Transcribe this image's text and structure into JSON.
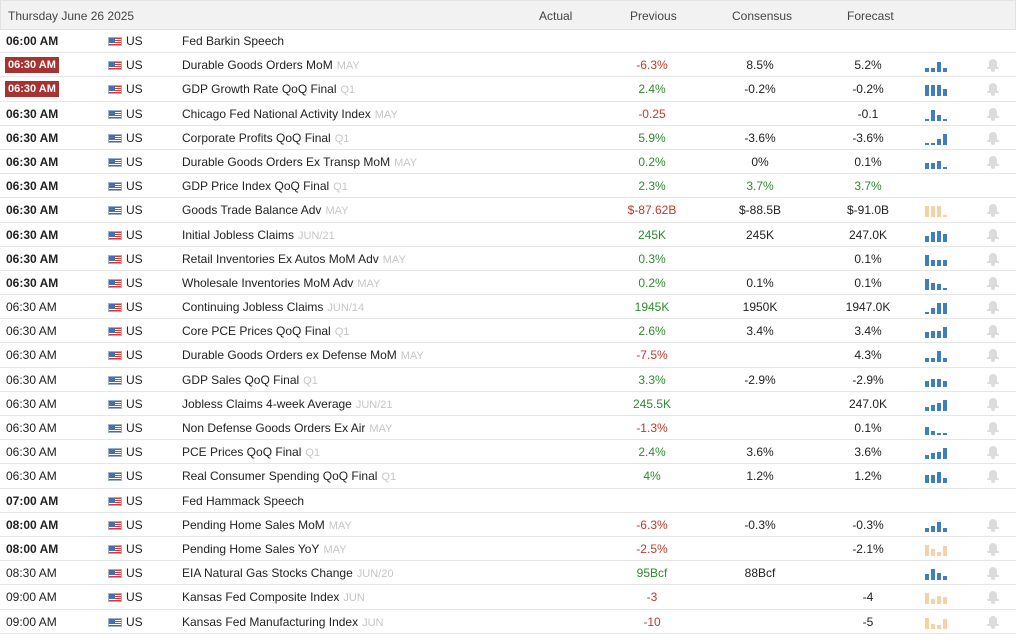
{
  "header": {
    "date": "Thursday June 26 2025",
    "actual": "Actual",
    "previous": "Previous",
    "consensus": "Consensus",
    "forecast": "Forecast"
  },
  "colors": {
    "negative": "#c0392b",
    "positive": "#2e8b2e",
    "badge": "#a63232",
    "spark_blue": "#3f7fbf",
    "spark_tan": "#f5d2a6"
  },
  "events": [
    {
      "time": "06:00 AM",
      "style": "bold",
      "country": "US",
      "event": "Fed Barkin Speech",
      "period": "",
      "actual": "",
      "previous": "",
      "previous_color": "",
      "consensus": "",
      "consensus_color": "",
      "forecast": "",
      "forecast_color": "",
      "spark": "none",
      "spark_values": [],
      "bell": false
    },
    {
      "time": "06:30 AM",
      "style": "badge",
      "country": "US",
      "event": "Durable Goods Orders MoM",
      "period": "MAY",
      "actual": "",
      "previous": "-6.3%",
      "previous_color": "neg",
      "consensus": "8.5%",
      "consensus_color": "",
      "forecast": "5.2%",
      "forecast_color": "",
      "spark": "blue",
      "spark_values": [
        0.3,
        0.3,
        0.85,
        0.3
      ],
      "bell": true
    },
    {
      "time": "06:30 AM",
      "style": "badge",
      "country": "US",
      "event": "GDP Growth Rate QoQ Final",
      "period": "Q1",
      "actual": "",
      "previous": "2.4%",
      "previous_color": "pos",
      "consensus": "-0.2%",
      "consensus_color": "",
      "forecast": "-0.2%",
      "forecast_color": "",
      "spark": "blue",
      "spark_values": [
        0.9,
        0.9,
        0.9,
        0.6
      ],
      "bell": true
    },
    {
      "time": "06:30 AM",
      "style": "bold",
      "country": "US",
      "event": "Chicago Fed National Activity Index",
      "period": "MAY",
      "actual": "",
      "previous": "-0.25",
      "previous_color": "neg",
      "consensus": "",
      "consensus_color": "",
      "forecast": "-0.1",
      "forecast_color": "",
      "spark": "blue",
      "spark_values": [
        0.2,
        0.9,
        0.5,
        0.2
      ],
      "bell": true
    },
    {
      "time": "06:30 AM",
      "style": "bold",
      "country": "US",
      "event": "Corporate Profits QoQ Final",
      "period": "Q1",
      "actual": "",
      "previous": "5.9%",
      "previous_color": "pos",
      "consensus": "-3.6%",
      "consensus_color": "",
      "forecast": "-3.6%",
      "forecast_color": "",
      "spark": "blue",
      "spark_values": [
        0.2,
        0.2,
        0.5,
        0.9
      ],
      "bell": true
    },
    {
      "time": "06:30 AM",
      "style": "bold",
      "country": "US",
      "event": "Durable Goods Orders Ex Transp MoM",
      "period": "MAY",
      "actual": "",
      "previous": "0.2%",
      "previous_color": "pos",
      "consensus": "0%",
      "consensus_color": "",
      "forecast": "0.1%",
      "forecast_color": "",
      "spark": "blue",
      "spark_values": [
        0.5,
        0.5,
        0.7,
        0.2
      ],
      "bell": true
    },
    {
      "time": "06:30 AM",
      "style": "bold",
      "country": "US",
      "event": "GDP Price Index QoQ Final",
      "period": "Q1",
      "actual": "",
      "previous": "2.3%",
      "previous_color": "pos",
      "consensus": "3.7%",
      "consensus_color": "pos",
      "forecast": "3.7%",
      "forecast_color": "pos",
      "spark": "none",
      "spark_values": [],
      "bell": false
    },
    {
      "time": "06:30 AM",
      "style": "bold",
      "country": "US",
      "event": "Goods Trade Balance Adv",
      "period": "MAY",
      "actual": "",
      "previous": "$-87.62B",
      "previous_color": "neg",
      "consensus": "$-88.5B",
      "consensus_color": "",
      "forecast": "$-91.0B",
      "forecast_color": "",
      "spark": "tan",
      "spark_values": [
        0.9,
        0.9,
        0.9,
        0.2
      ],
      "bell": true
    },
    {
      "time": "06:30 AM",
      "style": "bold",
      "country": "US",
      "event": "Initial Jobless Claims",
      "period": "JUN/21",
      "actual": "",
      "previous": "245K",
      "previous_color": "pos",
      "consensus": "245K",
      "consensus_color": "",
      "forecast": "247.0K",
      "forecast_color": "",
      "spark": "blue",
      "spark_values": [
        0.5,
        0.8,
        0.9,
        0.7
      ],
      "bell": true
    },
    {
      "time": "06:30 AM",
      "style": "bold",
      "country": "US",
      "event": "Retail Inventories Ex Autos MoM Adv",
      "period": "MAY",
      "actual": "",
      "previous": "0.3%",
      "previous_color": "pos",
      "consensus": "",
      "consensus_color": "",
      "forecast": "0.1%",
      "forecast_color": "",
      "spark": "blue",
      "spark_values": [
        0.9,
        0.5,
        0.5,
        0.5
      ],
      "bell": true
    },
    {
      "time": "06:30 AM",
      "style": "bold",
      "country": "US",
      "event": "Wholesale Inventories MoM Adv",
      "period": "MAY",
      "actual": "",
      "previous": "0.2%",
      "previous_color": "pos",
      "consensus": "0.1%",
      "consensus_color": "",
      "forecast": "0.1%",
      "forecast_color": "",
      "spark": "blue",
      "spark_values": [
        0.9,
        0.6,
        0.5,
        0.2
      ],
      "bell": true
    },
    {
      "time": "06:30 AM",
      "style": "normal",
      "country": "US",
      "event": "Continuing Jobless Claims",
      "period": "JUN/14",
      "actual": "",
      "previous": "1945K",
      "previous_color": "pos",
      "consensus": "1950K",
      "consensus_color": "",
      "forecast": "1947.0K",
      "forecast_color": "",
      "spark": "blue",
      "spark_values": [
        0.2,
        0.5,
        0.9,
        0.9
      ],
      "bell": true
    },
    {
      "time": "06:30 AM",
      "style": "normal",
      "country": "US",
      "event": "Core PCE Prices QoQ Final",
      "period": "Q1",
      "actual": "",
      "previous": "2.6%",
      "previous_color": "pos",
      "consensus": "3.4%",
      "consensus_color": "",
      "forecast": "3.4%",
      "forecast_color": "",
      "spark": "blue",
      "spark_values": [
        0.5,
        0.6,
        0.6,
        0.9
      ],
      "bell": true
    },
    {
      "time": "06:30 AM",
      "style": "normal",
      "country": "US",
      "event": "Durable Goods Orders ex Defense MoM",
      "period": "MAY",
      "actual": "",
      "previous": "-7.5%",
      "previous_color": "neg",
      "consensus": "",
      "consensus_color": "",
      "forecast": "4.3%",
      "forecast_color": "",
      "spark": "blue",
      "spark_values": [
        0.3,
        0.3,
        0.9,
        0.3
      ],
      "bell": true
    },
    {
      "time": "06:30 AM",
      "style": "normal",
      "country": "US",
      "event": "GDP Sales QoQ Final",
      "period": "Q1",
      "actual": "",
      "previous": "3.3%",
      "previous_color": "pos",
      "consensus": "-2.9%",
      "consensus_color": "",
      "forecast": "-2.9%",
      "forecast_color": "",
      "spark": "blue",
      "spark_values": [
        0.5,
        0.7,
        0.7,
        0.5
      ],
      "bell": true
    },
    {
      "time": "06:30 AM",
      "style": "normal",
      "country": "US",
      "event": "Jobless Claims 4-week Average",
      "period": "JUN/21",
      "actual": "",
      "previous": "245.5K",
      "previous_color": "pos",
      "consensus": "",
      "consensus_color": "",
      "forecast": "247.0K",
      "forecast_color": "",
      "spark": "blue",
      "spark_values": [
        0.3,
        0.5,
        0.7,
        0.9
      ],
      "bell": true
    },
    {
      "time": "06:30 AM",
      "style": "normal",
      "country": "US",
      "event": "Non Defense Goods Orders Ex Air",
      "period": "MAY",
      "actual": "",
      "previous": "-1.3%",
      "previous_color": "neg",
      "consensus": "",
      "consensus_color": "",
      "forecast": "0.1%",
      "forecast_color": "",
      "spark": "blue",
      "spark_values": [
        0.7,
        0.3,
        0.2,
        0.2
      ],
      "bell": true
    },
    {
      "time": "06:30 AM",
      "style": "normal",
      "country": "US",
      "event": "PCE Prices QoQ Final",
      "period": "Q1",
      "actual": "",
      "previous": "2.4%",
      "previous_color": "pos",
      "consensus": "3.6%",
      "consensus_color": "",
      "forecast": "3.6%",
      "forecast_color": "",
      "spark": "blue",
      "spark_values": [
        0.3,
        0.5,
        0.6,
        0.9
      ],
      "bell": true
    },
    {
      "time": "06:30 AM",
      "style": "normal",
      "country": "US",
      "event": "Real Consumer Spending QoQ Final",
      "period": "Q1",
      "actual": "",
      "previous": "4%",
      "previous_color": "pos",
      "consensus": "1.2%",
      "consensus_color": "",
      "forecast": "1.2%",
      "forecast_color": "",
      "spark": "blue",
      "spark_values": [
        0.7,
        0.7,
        0.9,
        0.4
      ],
      "bell": true
    },
    {
      "time": "07:00 AM",
      "style": "bold",
      "country": "US",
      "event": "Fed Hammack Speech",
      "period": "",
      "actual": "",
      "previous": "",
      "previous_color": "",
      "consensus": "",
      "consensus_color": "",
      "forecast": "",
      "forecast_color": "",
      "spark": "none",
      "spark_values": [],
      "bell": false
    },
    {
      "time": "08:00 AM",
      "style": "bold",
      "country": "US",
      "event": "Pending Home Sales MoM",
      "period": "MAY",
      "actual": "",
      "previous": "-6.3%",
      "previous_color": "neg",
      "consensus": "-0.3%",
      "consensus_color": "",
      "forecast": "-0.3%",
      "forecast_color": "",
      "spark": "blue",
      "spark_values": [
        0.3,
        0.5,
        0.8,
        0.3
      ],
      "bell": true
    },
    {
      "time": "08:00 AM",
      "style": "bold",
      "country": "US",
      "event": "Pending Home Sales YoY",
      "period": "MAY",
      "actual": "",
      "previous": "-2.5%",
      "previous_color": "neg",
      "consensus": "",
      "consensus_color": "",
      "forecast": "-2.1%",
      "forecast_color": "",
      "spark": "tan",
      "spark_values": [
        0.9,
        0.6,
        0.3,
        0.8
      ],
      "bell": true
    },
    {
      "time": "08:30 AM",
      "style": "normal",
      "country": "US",
      "event": "EIA Natural Gas Stocks Change",
      "period": "JUN/20",
      "actual": "",
      "previous": "95Bcf",
      "previous_color": "pos",
      "consensus": "88Bcf",
      "consensus_color": "",
      "forecast": "",
      "forecast_color": "",
      "spark": "blue",
      "spark_values": [
        0.5,
        0.9,
        0.6,
        0.3
      ],
      "bell": true
    },
    {
      "time": "09:00 AM",
      "style": "normal",
      "country": "US",
      "event": "Kansas Fed Composite Index",
      "period": "JUN",
      "actual": "",
      "previous": "-3",
      "previous_color": "neg",
      "consensus": "",
      "consensus_color": "",
      "forecast": "-4",
      "forecast_color": "",
      "spark": "tan",
      "spark_values": [
        0.9,
        0.4,
        0.7,
        0.6
      ],
      "bell": true
    },
    {
      "time": "09:00 AM",
      "style": "normal",
      "country": "US",
      "event": "Kansas Fed Manufacturing Index",
      "period": "JUN",
      "actual": "",
      "previous": "-10",
      "previous_color": "neg",
      "consensus": "",
      "consensus_color": "",
      "forecast": "-5",
      "forecast_color": "",
      "spark": "tan",
      "spark_values": [
        0.9,
        0.4,
        0.3,
        0.8
      ],
      "bell": true
    }
  ]
}
